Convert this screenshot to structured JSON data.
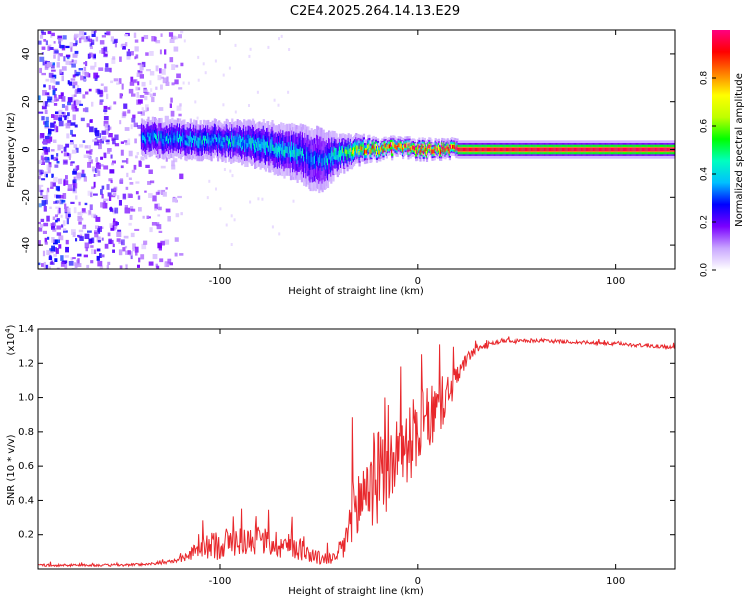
{
  "title": "C2E4.2025.264.14.13.E29",
  "chart_data": [
    {
      "type": "heatmap",
      "panel": "spectrogram",
      "xlabel": "Height of straight line (km)",
      "ylabel": "Frequency (Hz)",
      "xlim": [
        -192,
        130
      ],
      "ylim": [
        -50,
        50
      ],
      "xticks": [
        -100,
        0,
        100
      ],
      "xtick_labels": [
        "-100",
        "0",
        "100"
      ],
      "yticks": [
        -40,
        -20,
        0,
        20,
        40
      ],
      "ytick_labels": [
        "-40",
        "-20",
        "0",
        "20",
        "40"
      ],
      "colorbar": {
        "label": "Normalized spectral amplitude",
        "range": [
          0,
          1
        ],
        "ticks": [
          0.0,
          0.2,
          0.4,
          0.6,
          0.8
        ],
        "tick_labels": [
          "0.0",
          "0.2",
          "0.4",
          "0.6",
          "0.8"
        ],
        "colors": [
          "#ffffff",
          "#c9a6ff",
          "#7a00ff",
          "#0000ff",
          "#00bfff",
          "#00ffbf",
          "#00ff00",
          "#bfff00",
          "#ffff00",
          "#ff8000",
          "#ff0000",
          "#ff0080"
        ]
      },
      "signal_band": {
        "x": [
          -140,
          -120,
          -100,
          -80,
          -60,
          -50,
          -40,
          -30,
          -20,
          -10,
          0,
          10,
          20,
          130
        ],
        "center_hz": [
          5,
          4,
          4,
          2,
          -2,
          -5,
          -2,
          0,
          0,
          1,
          0,
          0,
          0,
          0
        ],
        "half_width_hz": [
          4,
          4,
          4,
          5,
          6,
          7,
          4,
          3,
          2,
          2,
          2,
          2,
          2,
          2
        ],
        "amplitude": [
          0.35,
          0.38,
          0.4,
          0.4,
          0.38,
          0.3,
          0.5,
          0.7,
          0.8,
          0.82,
          0.85,
          0.9,
          0.95,
          0.98
        ]
      },
      "noise_region_x": [
        -192,
        -120
      ]
    },
    {
      "type": "line",
      "panel": "snr",
      "xlabel": "Height of straight line (km)",
      "ylabel": "SNR (10 * v/v)",
      "y_multiplier_label": "(x10",
      "y_multiplier_exp": "4",
      "y_multiplier_close": ")",
      "xlim": [
        -192,
        130
      ],
      "ylim": [
        0,
        1.4
      ],
      "xticks": [
        -100,
        0,
        100
      ],
      "xtick_labels": [
        "-100",
        "0",
        "100"
      ],
      "yticks": [
        0.2,
        0.4,
        0.6,
        0.8,
        1.0,
        1.2,
        1.4
      ],
      "ytick_labels": [
        "0.2",
        "0.4",
        "0.6",
        "0.8",
        "1.0",
        "1.2",
        "1.4"
      ],
      "line_color": "#e8282c",
      "envelope": {
        "x": [
          -192,
          -150,
          -130,
          -120,
          -110,
          -100,
          -90,
          -80,
          -70,
          -60,
          -50,
          -42,
          -38,
          -34,
          -30,
          -25,
          -20,
          -15,
          -10,
          -5,
          0,
          5,
          10,
          15,
          20,
          25,
          30,
          40,
          60,
          80,
          100,
          130
        ],
        "base": [
          0.02,
          0.02,
          0.03,
          0.05,
          0.1,
          0.12,
          0.14,
          0.14,
          0.12,
          0.1,
          0.05,
          0.05,
          0.1,
          0.2,
          0.3,
          0.42,
          0.45,
          0.5,
          0.62,
          0.65,
          0.75,
          0.8,
          0.88,
          0.98,
          1.1,
          1.22,
          1.28,
          1.32,
          1.33,
          1.32,
          1.31,
          1.29
        ],
        "amplitude": [
          0.01,
          0.01,
          0.01,
          0.02,
          0.08,
          0.14,
          0.12,
          0.12,
          0.12,
          0.1,
          0.06,
          0.05,
          0.12,
          0.3,
          0.35,
          0.45,
          0.38,
          0.35,
          0.32,
          0.3,
          0.35,
          0.28,
          0.25,
          0.18,
          0.1,
          0.05,
          0.03,
          0.02,
          0.015,
          0.015,
          0.015,
          0.015
        ]
      }
    }
  ]
}
